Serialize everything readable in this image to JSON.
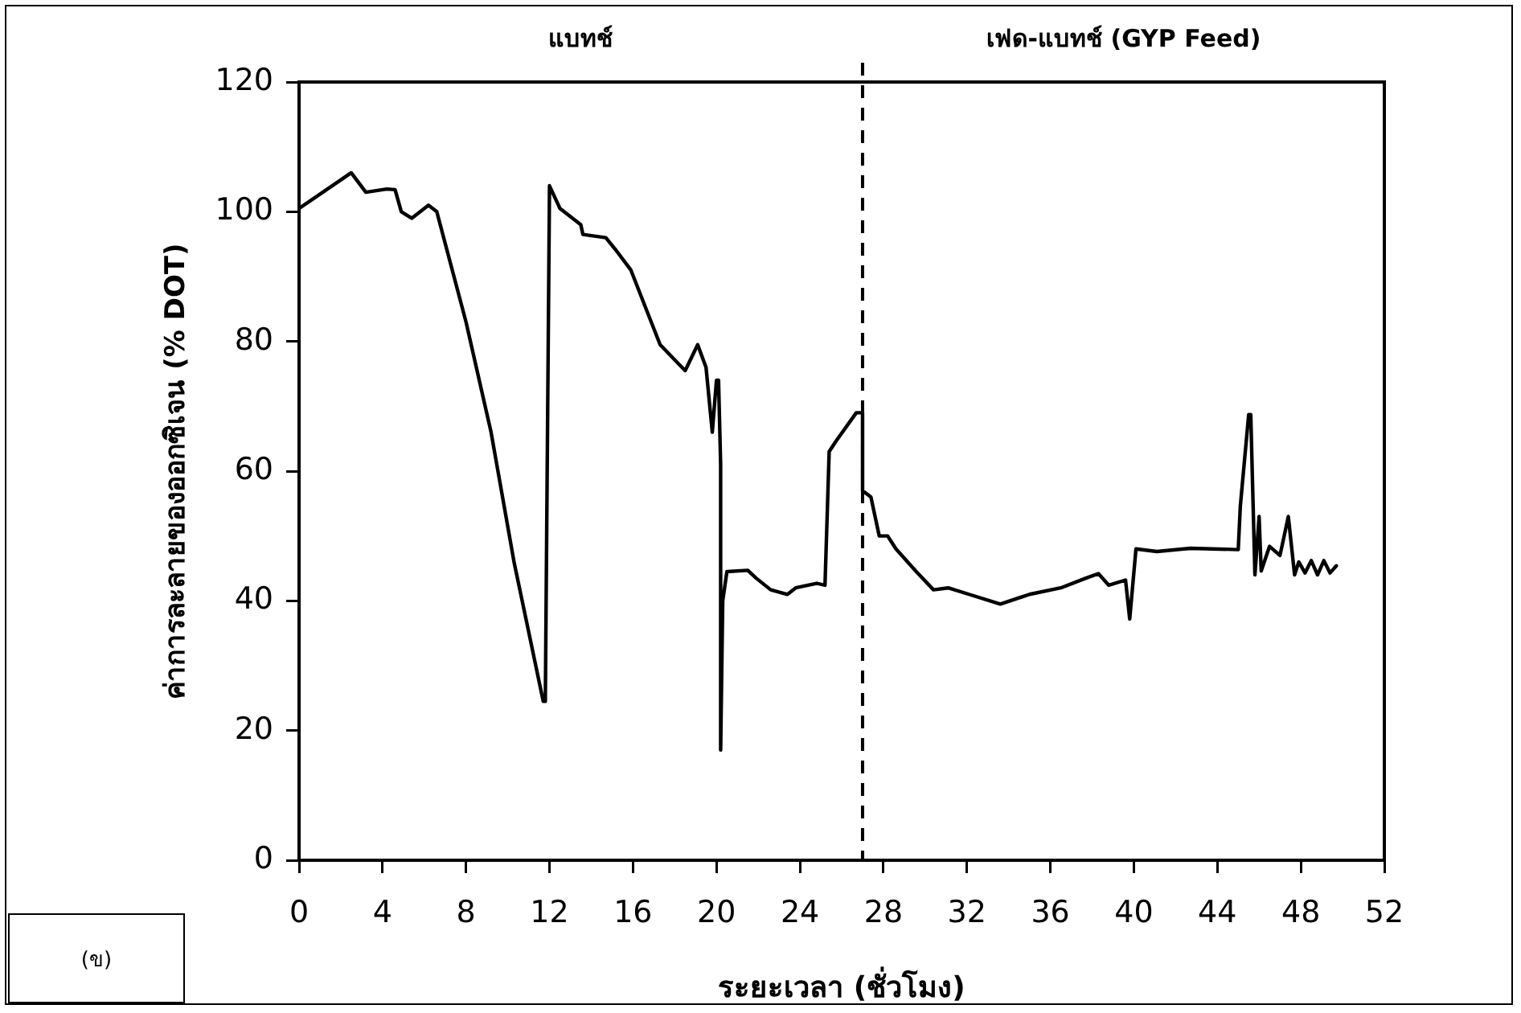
{
  "chart_data": {
    "type": "line",
    "xlabel": "ระยะเวลา (ชั่วโมง)",
    "ylabel": "ค่าการละลายของออกซิเจน (% DOT)",
    "xlim": [
      0,
      52
    ],
    "xticks": [
      0,
      4,
      8,
      12,
      16,
      20,
      24,
      28,
      32,
      36,
      40,
      44,
      48,
      52
    ],
    "ylim": [
      0,
      120
    ],
    "yticks": [
      0,
      20,
      40,
      60,
      80,
      100,
      120
    ],
    "grid": false,
    "legend": false,
    "marker": "none",
    "line_style": "solid",
    "annotations": [
      "แบทช์",
      "เฟด-แบทช์ (GYP Feed)",
      "(ข)"
    ],
    "ref_lines": [
      {
        "axis": "x",
        "value": 27,
        "line_style": "dashed",
        "color": "#000000"
      }
    ],
    "series": [
      {
        "color": "#000000",
        "x": [
          0,
          2.5,
          3.2,
          4.2,
          4.6,
          4.9,
          5.4,
          6.2,
          6.6,
          8,
          9.2,
          10.3,
          11.7,
          11.8,
          12,
          12.5,
          13.5,
          13.6,
          14.7,
          15.2,
          15.9,
          17.3,
          18.5,
          19.1,
          19.5,
          19.8,
          20,
          20.1,
          20.2,
          20.2,
          20.3,
          20.5,
          21.5,
          21.9,
          22.6,
          23.4,
          23.8,
          24.8,
          25.2,
          25.4,
          25.7,
          26.7,
          27,
          27,
          27.4,
          27.8,
          28.2,
          28.6,
          29.6,
          30.4,
          31.1,
          32.1,
          33.6,
          35,
          36.5,
          37.7,
          38.3,
          38.8,
          39.6,
          39.8,
          40.1,
          41.1,
          42.7,
          45,
          45.1,
          45.5,
          45.6,
          45.8,
          46,
          46.1,
          46.5,
          47,
          47.4,
          47.7,
          47.9,
          48.2,
          48.5,
          48.8,
          49.1,
          49.4,
          49.7
        ],
        "values": [
          100.5,
          106,
          103,
          103.5,
          103.4,
          100,
          99,
          101,
          100,
          83,
          66,
          46,
          24.5,
          24.5,
          104,
          100.5,
          98,
          96.5,
          96,
          94,
          91,
          79.5,
          75.5,
          79.5,
          76,
          66,
          74,
          74,
          61,
          17,
          40,
          44.5,
          44.7,
          43.5,
          41.7,
          41,
          42,
          42.7,
          42.4,
          63,
          64.5,
          69,
          69,
          57,
          56,
          50,
          50,
          48,
          44.4,
          41.7,
          42,
          41,
          39.5,
          41,
          42,
          43.5,
          44.2,
          42.4,
          43.2,
          37.2,
          48,
          47.6,
          48.1,
          47.9,
          54.6,
          68.7,
          68.7,
          44,
          53,
          44.6,
          48.4,
          47,
          53,
          44,
          46,
          44.3,
          46.2,
          44,
          46.2,
          44.3,
          45.4
        ]
      }
    ]
  }
}
